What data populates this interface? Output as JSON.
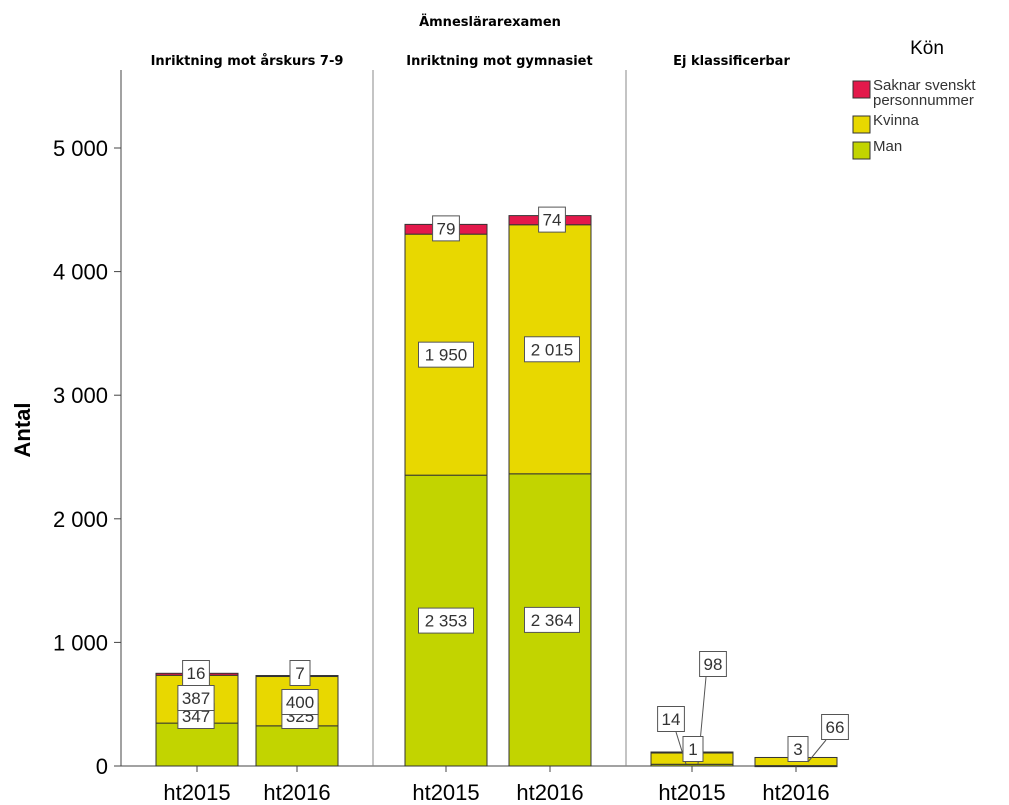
{
  "chart_data": {
    "type": "bar",
    "stacked": true,
    "super_title": "Ämneslärarexamen",
    "ylabel": "Antal",
    "ylim": [
      0,
      5600
    ],
    "yticks": [
      {
        "value": 0,
        "label": "0"
      },
      {
        "value": 1000,
        "label": "1 000"
      },
      {
        "value": 2000,
        "label": "2 000"
      },
      {
        "value": 3000,
        "label": "3 000"
      },
      {
        "value": 4000,
        "label": "4 000"
      },
      {
        "value": 5000,
        "label": "5 000"
      }
    ],
    "grid": false,
    "legend": {
      "title": "Kön",
      "position": "top-right",
      "entries": [
        {
          "series": "Saknar svenskt personnummer",
          "lines": [
            "Saknar svenskt",
            "personnummer"
          ],
          "color": "#e3194b"
        },
        {
          "series": "Kvinna",
          "lines": [
            "Kvinna"
          ],
          "color": "#e8d800"
        },
        {
          "series": "Man",
          "lines": [
            "Man"
          ],
          "color": "#c2d400"
        }
      ]
    },
    "series_order": [
      "Man",
      "Kvinna",
      "Saknar svenskt personnummer"
    ],
    "colors": {
      "Man": "#c2d400",
      "Kvinna": "#e8d800",
      "Saknar svenskt personnummer": "#e3194b"
    },
    "panels": [
      {
        "title": "Inriktning mot årskurs 7-9",
        "bars": [
          {
            "category": "ht2015",
            "values": {
              "Man": 347,
              "Kvinna": 387,
              "Saknar svenskt personnummer": 16
            },
            "labels": {
              "Man": "347",
              "Kvinna": "387",
              "Saknar svenskt personnummer": "16"
            }
          },
          {
            "category": "ht2016",
            "values": {
              "Man": 325,
              "Kvinna": 400,
              "Saknar svenskt personnummer": 7
            },
            "labels": {
              "Man": "325",
              "Kvinna": "400",
              "Saknar svenskt personnummer": "7"
            }
          }
        ]
      },
      {
        "title": "Inriktning mot gymnasiet",
        "bars": [
          {
            "category": "ht2015",
            "values": {
              "Man": 2353,
              "Kvinna": 1950,
              "Saknar svenskt personnummer": 79
            },
            "labels": {
              "Man": "2 353",
              "Kvinna": "1 950",
              "Saknar svenskt personnummer": "79"
            }
          },
          {
            "category": "ht2016",
            "values": {
              "Man": 2364,
              "Kvinna": 2015,
              "Saknar svenskt personnummer": 74
            },
            "labels": {
              "Man": "2 364",
              "Kvinna": "2 015",
              "Saknar svenskt personnummer": "74"
            }
          }
        ]
      },
      {
        "title": "Ej klassificerbar",
        "bars": [
          {
            "category": "ht2015",
            "values": {
              "Man": 14,
              "Kvinna": 98,
              "Saknar svenskt personnummer": 1
            },
            "labels": {
              "Man": "14",
              "Kvinna": "98",
              "Saknar svenskt personnummer": "1"
            }
          },
          {
            "category": "ht2016",
            "values": {
              "Man": 3,
              "Kvinna": 66,
              "Saknar svenskt personnummer": 0
            },
            "labels": {
              "Man": "3",
              "Kvinna": "66"
            }
          }
        ]
      }
    ]
  }
}
